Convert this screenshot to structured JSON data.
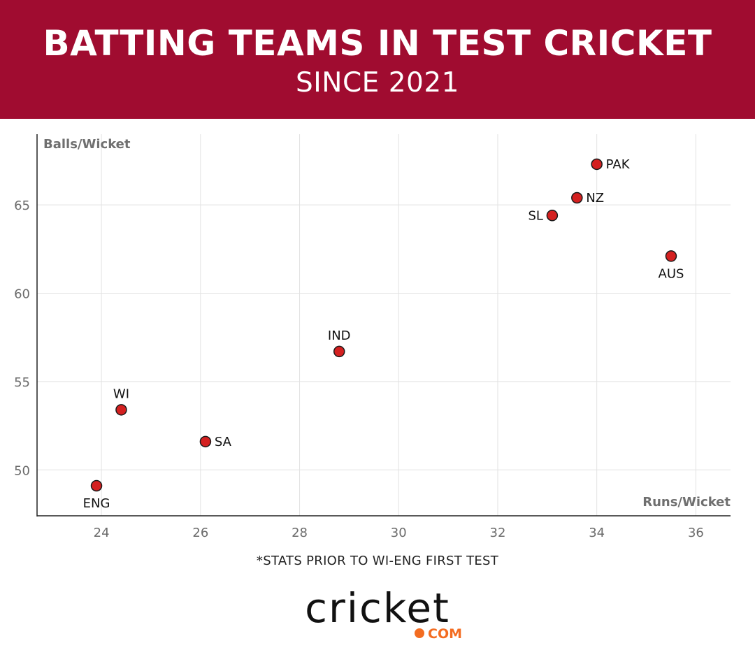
{
  "header": {
    "title": "BATTING TEAMS IN TEST CRICKET",
    "subtitle": "SINCE 2021"
  },
  "chart_data": {
    "type": "scatter",
    "xlabel": "Runs/Wicket",
    "ylabel": "Balls/Wicket",
    "xlim": [
      22.7,
      36.7
    ],
    "ylim": [
      47.4,
      69.0
    ],
    "xticks": [
      24,
      26,
      28,
      30,
      32,
      34,
      36
    ],
    "yticks": [
      50,
      55,
      60,
      65
    ],
    "grid": true,
    "point_color": "#d42020",
    "points": [
      {
        "label": "PAK",
        "x": 34.0,
        "y": 67.3,
        "label_pos": "right"
      },
      {
        "label": "NZ",
        "x": 33.6,
        "y": 65.4,
        "label_pos": "right"
      },
      {
        "label": "SL",
        "x": 33.1,
        "y": 64.4,
        "label_pos": "left"
      },
      {
        "label": "AUS",
        "x": 35.5,
        "y": 62.1,
        "label_pos": "below"
      },
      {
        "label": "IND",
        "x": 28.8,
        "y": 56.7,
        "label_pos": "above"
      },
      {
        "label": "WI",
        "x": 24.4,
        "y": 53.4,
        "label_pos": "above"
      },
      {
        "label": "SA",
        "x": 26.1,
        "y": 51.6,
        "label_pos": "right"
      },
      {
        "label": "ENG",
        "x": 23.9,
        "y": 49.1,
        "label_pos": "below"
      }
    ]
  },
  "footnote": "*STATS PRIOR TO WI-ENG FIRST TEST",
  "logo": {
    "wordmark": "cricket",
    "suffix": "COM",
    "accent_color": "#f36c21"
  }
}
